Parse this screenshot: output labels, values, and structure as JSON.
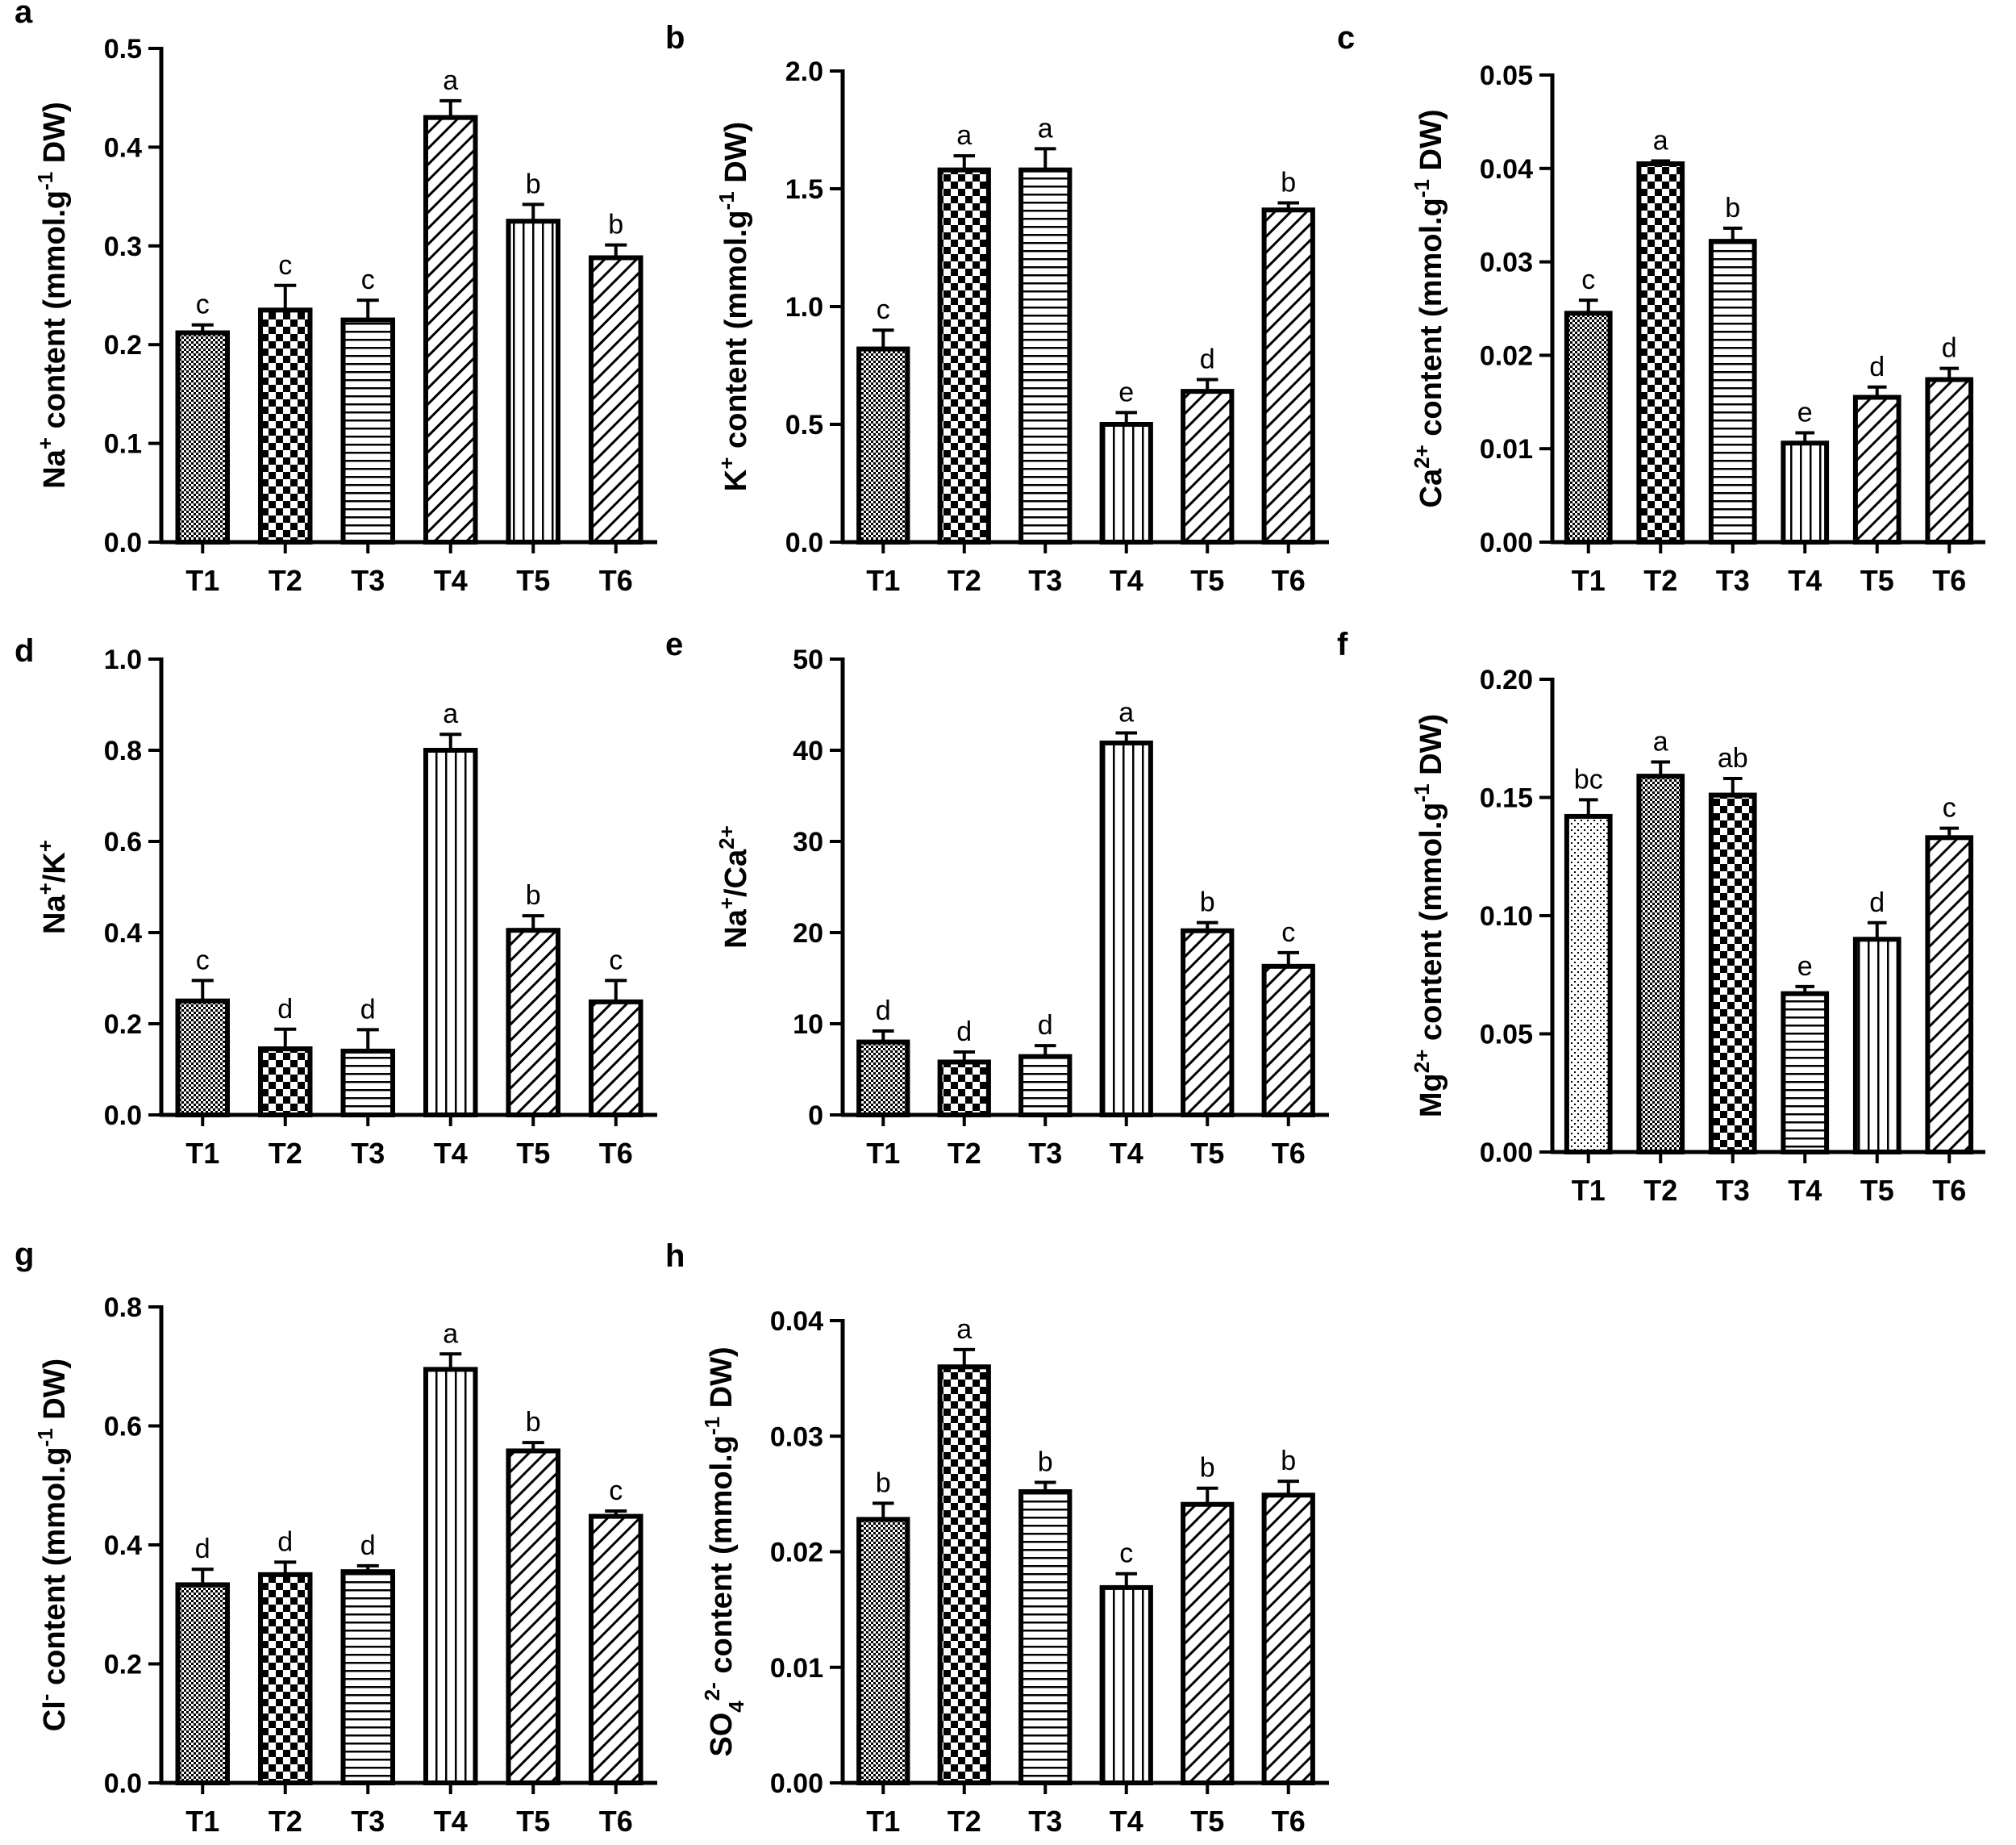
{
  "figure": {
    "categories": [
      "T1",
      "T2",
      "T3",
      "T4",
      "T5",
      "T6"
    ]
  },
  "chart_data": [
    {
      "panel": "a",
      "type": "bar",
      "ylabel_parts": [
        [
          "Na"
        ],
        [
          "+",
          "sup"
        ],
        [
          " content (mmol.g"
        ],
        [
          "-1",
          "sup"
        ],
        [
          " DW)"
        ]
      ],
      "ylim": [
        0,
        0.5
      ],
      "yticks": [
        0.0,
        0.1,
        0.2,
        0.3,
        0.4,
        0.5
      ],
      "ytick_labels": [
        "0.0",
        "0.1",
        "0.2",
        "0.3",
        "0.4",
        "0.5"
      ],
      "values": [
        0.212,
        0.235,
        0.225,
        0.43,
        0.325,
        0.288
      ],
      "errors": [
        0.008,
        0.025,
        0.02,
        0.017,
        0.017,
        0.013
      ],
      "letters": [
        "c",
        "c",
        "c",
        "a",
        "b",
        "b"
      ],
      "patterns": [
        "dots",
        "check",
        "hlines",
        "diag",
        "vlines",
        "diag"
      ]
    },
    {
      "panel": "b",
      "type": "bar",
      "ylabel_parts": [
        [
          "K"
        ],
        [
          "+",
          "sup"
        ],
        [
          " content (mmol.g"
        ],
        [
          "-1",
          "sup"
        ],
        [
          " DW)"
        ]
      ],
      "ylim": [
        0,
        2.0
      ],
      "yticks": [
        0.0,
        0.5,
        1.0,
        1.5,
        2.0
      ],
      "ytick_labels": [
        "0.0",
        "0.5",
        "1.0",
        "1.5",
        "2.0"
      ],
      "values": [
        0.82,
        1.58,
        1.58,
        0.5,
        0.64,
        1.41
      ],
      "errors": [
        0.08,
        0.06,
        0.09,
        0.05,
        0.05,
        0.03
      ],
      "letters": [
        "c",
        "a",
        "a",
        "e",
        "d",
        "b"
      ],
      "patterns": [
        "dots",
        "check",
        "hlines",
        "vlines",
        "diag",
        "diag"
      ]
    },
    {
      "panel": "c",
      "type": "bar",
      "ylabel_parts": [
        [
          "Ca"
        ],
        [
          "2+",
          "sup"
        ],
        [
          " content (mmol.g"
        ],
        [
          "-1",
          "sup"
        ],
        [
          " DW)"
        ]
      ],
      "ylim": [
        0,
        0.05
      ],
      "yticks": [
        0.0,
        0.01,
        0.02,
        0.03,
        0.04,
        0.05
      ],
      "ytick_labels": [
        "0.00",
        "0.01",
        "0.02",
        "0.03",
        "0.04",
        "0.05"
      ],
      "values": [
        0.0245,
        0.0405,
        0.0322,
        0.0106,
        0.0155,
        0.0174
      ],
      "errors": [
        0.0014,
        0.0003,
        0.0014,
        0.0011,
        0.0011,
        0.0012
      ],
      "letters": [
        "c",
        "a",
        "b",
        "e",
        "d",
        "d"
      ],
      "patterns": [
        "dots",
        "check",
        "hlines",
        "vlines",
        "diag",
        "diag"
      ]
    },
    {
      "panel": "d",
      "type": "bar",
      "ylabel_parts": [
        [
          "Na"
        ],
        [
          "+",
          "sup"
        ],
        [
          "/K"
        ],
        [
          "+",
          "sup"
        ]
      ],
      "ylim": [
        0,
        1.0
      ],
      "yticks": [
        0.0,
        0.2,
        0.4,
        0.6,
        0.8,
        1.0
      ],
      "ytick_labels": [
        "0.0",
        "0.2",
        "0.4",
        "0.6",
        "0.8",
        "1.0"
      ],
      "values": [
        0.25,
        0.145,
        0.14,
        0.8,
        0.405,
        0.248
      ],
      "errors": [
        0.045,
        0.043,
        0.047,
        0.035,
        0.032,
        0.047
      ],
      "letters": [
        "c",
        "d",
        "d",
        "a",
        "b",
        "c"
      ],
      "patterns": [
        "dots",
        "check",
        "hlines",
        "vlines",
        "diag",
        "diag"
      ]
    },
    {
      "panel": "e",
      "type": "bar",
      "ylabel_parts": [
        [
          "Na"
        ],
        [
          "+",
          "sup"
        ],
        [
          "/Ca"
        ],
        [
          "2+",
          "sup"
        ]
      ],
      "ylim": [
        0,
        50
      ],
      "yticks": [
        0,
        10,
        20,
        30,
        40,
        50
      ],
      "ytick_labels": [
        "0",
        "10",
        "20",
        "30",
        "40",
        "50"
      ],
      "values": [
        8.0,
        5.8,
        6.4,
        40.8,
        20.2,
        16.3
      ],
      "errors": [
        1.2,
        1.1,
        1.2,
        1.1,
        0.9,
        1.5
      ],
      "letters": [
        "d",
        "d",
        "d",
        "a",
        "b",
        "c"
      ],
      "patterns": [
        "dots",
        "check",
        "hlines",
        "vlines",
        "diag",
        "diag"
      ]
    },
    {
      "panel": "f",
      "type": "bar",
      "ylabel_parts": [
        [
          "Mg"
        ],
        [
          "2+",
          "sup"
        ],
        [
          " content (mmol.g"
        ],
        [
          "-1",
          "sup"
        ],
        [
          " DW)"
        ]
      ],
      "ylim": [
        0,
        0.2
      ],
      "yticks": [
        0.0,
        0.05,
        0.1,
        0.15,
        0.2
      ],
      "ytick_labels": [
        "0.00",
        "0.05",
        "0.10",
        "0.15",
        "0.20"
      ],
      "values": [
        0.142,
        0.159,
        0.151,
        0.067,
        0.09,
        0.133
      ],
      "errors": [
        0.007,
        0.006,
        0.007,
        0.003,
        0.007,
        0.004
      ],
      "letters": [
        "bc",
        "a",
        "ab",
        "e",
        "d",
        "c"
      ],
      "patterns": [
        "finedots",
        "dots",
        "check",
        "hlines",
        "vlines",
        "diag"
      ]
    },
    {
      "panel": "g",
      "type": "bar",
      "ylabel_parts": [
        [
          "Cl"
        ],
        [
          "-",
          "sup"
        ],
        [
          " content (mmol.g"
        ],
        [
          "-1",
          "sup"
        ],
        [
          " DW)"
        ]
      ],
      "ylim": [
        0,
        0.8
      ],
      "yticks": [
        0.0,
        0.2,
        0.4,
        0.6,
        0.8
      ],
      "ytick_labels": [
        "0.0",
        "0.2",
        "0.4",
        "0.6",
        "0.8"
      ],
      "values": [
        0.333,
        0.35,
        0.355,
        0.695,
        0.558,
        0.448
      ],
      "errors": [
        0.026,
        0.021,
        0.01,
        0.026,
        0.014,
        0.009
      ],
      "letters": [
        "d",
        "d",
        "d",
        "a",
        "b",
        "c"
      ],
      "patterns": [
        "dots",
        "check",
        "hlines",
        "vlines",
        "diag",
        "diag"
      ]
    },
    {
      "panel": "h",
      "type": "bar",
      "ylabel_parts": [
        [
          "SO"
        ],
        [
          "4",
          "sub"
        ],
        [
          "2-",
          "sup"
        ],
        [
          " content (mmol.g"
        ],
        [
          "-1",
          "sup"
        ],
        [
          " DW)"
        ]
      ],
      "ylim": [
        0,
        0.04
      ],
      "yticks": [
        0.0,
        0.01,
        0.02,
        0.03,
        0.04
      ],
      "ytick_labels": [
        "0.00",
        "0.01",
        "0.02",
        "0.03",
        "0.04"
      ],
      "values": [
        0.0228,
        0.036,
        0.0252,
        0.0169,
        0.0241,
        0.0249
      ],
      "errors": [
        0.0014,
        0.0015,
        0.0008,
        0.0012,
        0.0014,
        0.0012
      ],
      "letters": [
        "b",
        "a",
        "b",
        "c",
        "b",
        "b"
      ],
      "patterns": [
        "dots",
        "check",
        "hlines",
        "vlines",
        "diag",
        "diag"
      ]
    }
  ]
}
